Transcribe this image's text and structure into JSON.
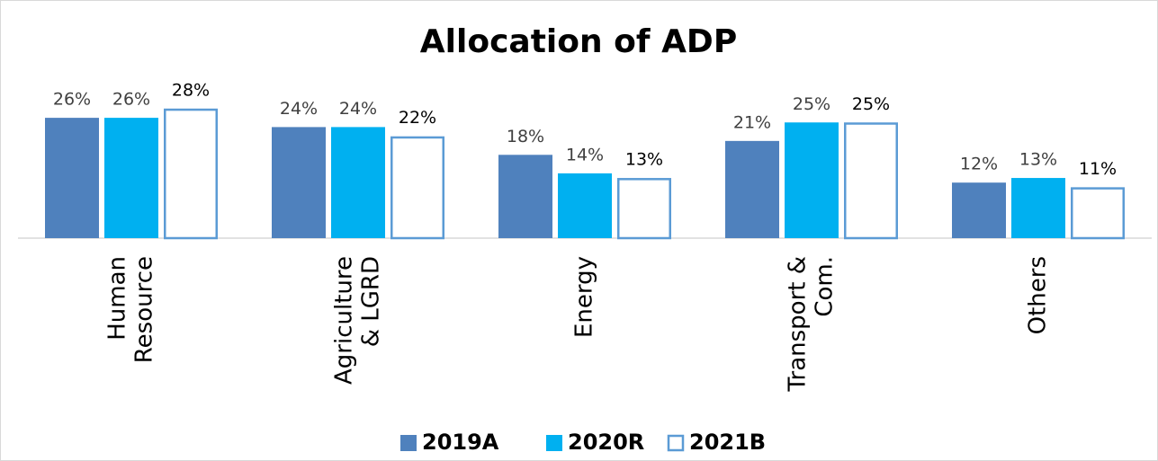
{
  "chart_data": {
    "type": "bar",
    "title": "Allocation of ADP",
    "categories": [
      [
        "Human",
        "Resource"
      ],
      [
        "Agriculture",
        "& LGRD"
      ],
      [
        "Energy"
      ],
      [
        "Transport &",
        "Com."
      ],
      [
        "Others"
      ]
    ],
    "series": [
      {
        "name": "2019A",
        "color": "#4f81bd",
        "fill": true,
        "values": [
          26,
          24,
          18,
          21,
          12
        ],
        "value_labels": [
          "26%",
          "24%",
          "18%",
          "21%",
          "12%"
        ]
      },
      {
        "name": "2020R",
        "color": "#00b0f0",
        "fill": true,
        "values": [
          26,
          24,
          14,
          25,
          13
        ],
        "value_labels": [
          "26%",
          "24%",
          "14%",
          "25%",
          "13%"
        ]
      },
      {
        "name": "2021B",
        "color": "#5b9bd5",
        "fill": false,
        "values": [
          28,
          22,
          13,
          25,
          11
        ],
        "value_labels": [
          "28%",
          "22%",
          "13%",
          "25%",
          "11%"
        ]
      }
    ],
    "legend": "bottom"
  }
}
